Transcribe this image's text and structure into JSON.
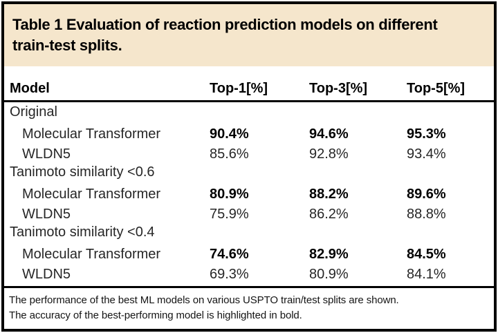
{
  "table": {
    "title_lines": [
      "Table 1 Evaluation of reaction prediction models on different",
      "train-test splits."
    ],
    "columns": [
      "Model",
      "Top-1[%]",
      "Top-3[%]",
      "Top-5[%]"
    ],
    "groups": [
      {
        "label": "Original",
        "rows": [
          {
            "model": "Molecular Transformer",
            "top1": "90.4%",
            "top3": "94.6%",
            "top5": "95.3%",
            "bold": true
          },
          {
            "model": "WLDN5",
            "top1": "85.6%",
            "top3": "92.8%",
            "top5": "93.4%",
            "bold": false
          }
        ]
      },
      {
        "label": "Tanimoto similarity <0.6",
        "rows": [
          {
            "model": "Molecular Transformer",
            "top1": "80.9%",
            "top3": "88.2%",
            "top5": "89.6%",
            "bold": true
          },
          {
            "model": "WLDN5",
            "top1": "75.9%",
            "top3": "86.2%",
            "top5": "88.8%",
            "bold": false
          }
        ]
      },
      {
        "label": "Tanimoto similarity <0.4",
        "rows": [
          {
            "model": "Molecular Transformer",
            "top1": "74.6%",
            "top3": "82.9%",
            "top5": "84.5%",
            "bold": true
          },
          {
            "model": "WLDN5",
            "top1": "69.3%",
            "top3": "80.9%",
            "top5": "84.1%",
            "bold": false
          }
        ]
      }
    ],
    "footnotes": [
      "The performance of the best ML models on various USPTO train/test splits are shown.",
      "The accuracy of the best-performing model is highlighted in bold."
    ]
  },
  "colors": {
    "header_bg": "#f5e6cc",
    "border": "#000000",
    "text": "#1a1a1a"
  }
}
